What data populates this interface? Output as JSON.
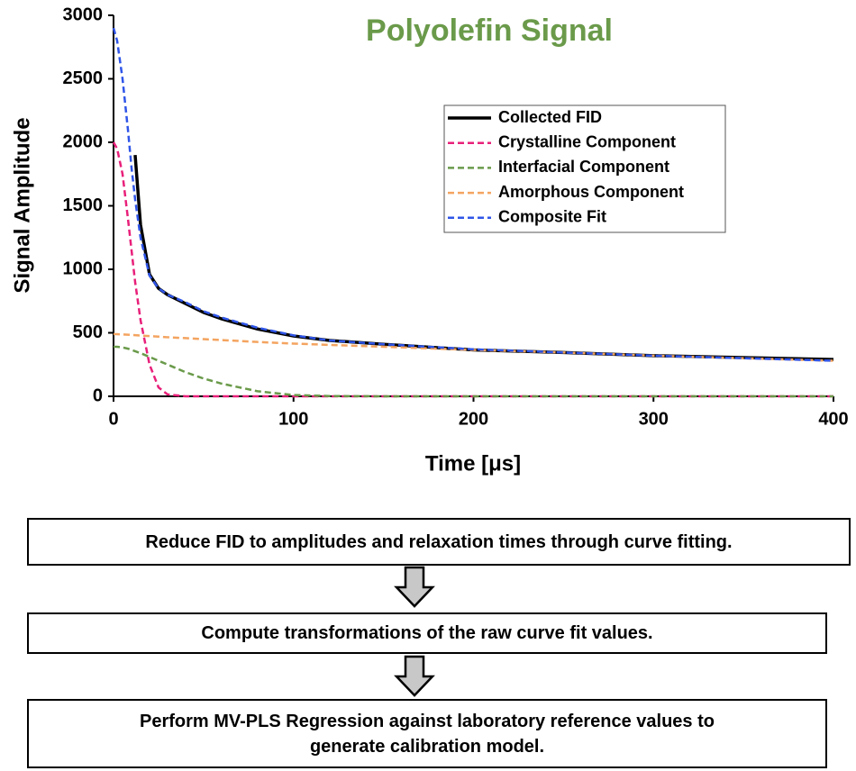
{
  "chart_data": {
    "type": "line",
    "title": "Polyolefin Signal",
    "title_color": "#6a9a4a",
    "x_label": "Time [μs]",
    "y_label": "Signal Amplitude",
    "x": [
      0,
      2,
      5,
      8,
      10,
      12,
      15,
      20,
      25,
      30,
      40,
      50,
      60,
      80,
      100,
      120,
      150,
      200,
      250,
      300,
      350,
      400
    ],
    "series": [
      {
        "name": "Collected FID",
        "color": "#000000",
        "dashed": false,
        "values": [
          null,
          null,
          null,
          null,
          null,
          1900,
          1350,
          960,
          850,
          800,
          730,
          660,
          610,
          530,
          475,
          440,
          410,
          365,
          345,
          320,
          305,
          290
        ]
      },
      {
        "name": "Crystalline Component",
        "color": "#e8207a",
        "dashed": true,
        "values": [
          2000,
          1950,
          1750,
          1400,
          1150,
          900,
          600,
          250,
          70,
          15,
          0,
          0,
          0,
          0,
          0,
          0,
          0,
          0,
          0,
          0,
          0,
          0
        ]
      },
      {
        "name": "Interfacial Component",
        "color": "#6a9a4a",
        "dashed": true,
        "values": [
          390,
          390,
          385,
          375,
          365,
          355,
          340,
          310,
          280,
          250,
          190,
          140,
          100,
          40,
          10,
          2,
          0,
          0,
          0,
          0,
          0,
          0
        ]
      },
      {
        "name": "Amorphous Component",
        "color": "#f4a460",
        "dashed": true,
        "values": [
          490,
          489,
          487,
          485,
          483,
          481,
          478,
          474,
          470,
          465,
          458,
          450,
          443,
          428,
          415,
          405,
          390,
          365,
          345,
          320,
          300,
          280
        ]
      },
      {
        "name": "Composite Fit",
        "color": "#2f55e8",
        "dashed": true,
        "values": [
          2900,
          2800,
          2500,
          2100,
          1800,
          1550,
          1250,
          950,
          850,
          800,
          740,
          670,
          620,
          540,
          480,
          440,
          410,
          370,
          345,
          320,
          300,
          280
        ]
      }
    ],
    "xlim": [
      0,
      400
    ],
    "xticks": [
      0,
      100,
      200,
      300,
      400
    ],
    "ylim": [
      0,
      3000
    ],
    "yticks": [
      0,
      500,
      1000,
      1500,
      2000,
      2500,
      3000
    ],
    "grid": false,
    "legend_position": "upper right"
  },
  "flow": {
    "steps": [
      {
        "lines": [
          "Reduce FID to amplitudes and relaxation times through curve fitting."
        ]
      },
      {
        "lines": [
          "Compute transformations of the raw curve fit values."
        ]
      },
      {
        "lines": [
          "Perform MV-PLS Regression against laboratory reference values to",
          "generate calibration model."
        ]
      }
    ]
  }
}
